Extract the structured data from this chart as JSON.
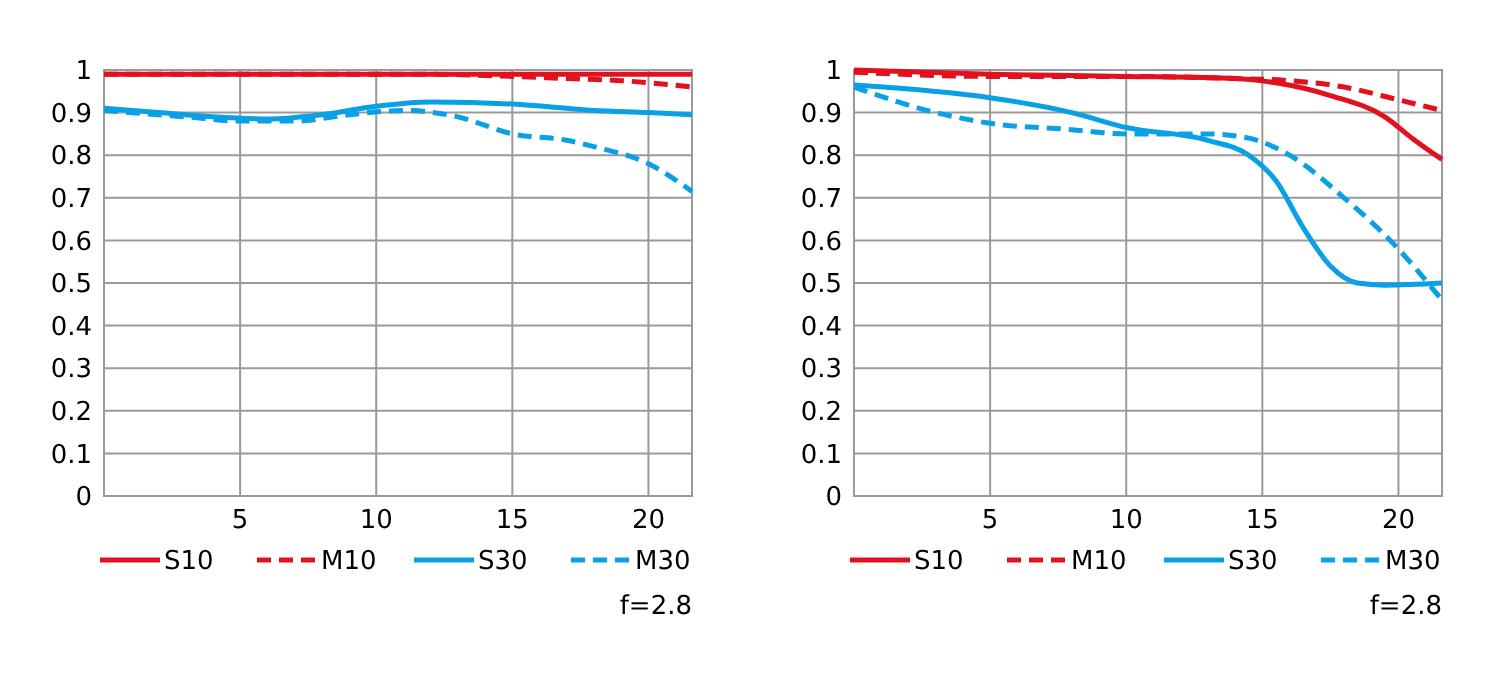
{
  "chart_data": [
    {
      "type": "line",
      "xlim": [
        0,
        21.6
      ],
      "xticks": [
        5,
        10,
        15,
        20
      ],
      "ylim": [
        0,
        1
      ],
      "yticks": [
        0,
        0.1,
        0.2,
        0.3,
        0.4,
        0.5,
        0.6,
        0.7,
        0.8,
        0.9,
        1
      ],
      "grid": true,
      "legend": "bottom",
      "annotations": [
        "f=2.8"
      ],
      "series": [
        {
          "name": "S10",
          "color": "#e3101d",
          "line_style": "solid",
          "x": [
            0,
            5,
            10,
            15,
            20,
            21.6
          ],
          "values": [
            0.99,
            0.99,
            0.99,
            0.99,
            0.99,
            0.99
          ]
        },
        {
          "name": "M10",
          "color": "#e3101d",
          "line_style": "dashed",
          "x": [
            0,
            6,
            12,
            15,
            17,
            19,
            21.6
          ],
          "values": [
            0.99,
            0.99,
            0.99,
            0.985,
            0.98,
            0.975,
            0.96
          ]
        },
        {
          "name": "S30",
          "color": "#0aa0e6",
          "line_style": "solid",
          "x": [
            0,
            2,
            4,
            6,
            8,
            10,
            12,
            15,
            18,
            20,
            21.6
          ],
          "values": [
            0.91,
            0.9,
            0.89,
            0.885,
            0.895,
            0.915,
            0.925,
            0.92,
            0.905,
            0.9,
            0.895
          ]
        },
        {
          "name": "M30",
          "color": "#0aa0e6",
          "line_style": "dashed",
          "x": [
            0,
            3,
            5,
            7,
            9,
            11,
            13,
            15,
            17,
            18,
            20,
            21.6
          ],
          "values": [
            0.905,
            0.89,
            0.88,
            0.88,
            0.895,
            0.905,
            0.89,
            0.85,
            0.835,
            0.82,
            0.78,
            0.715
          ]
        }
      ]
    },
    {
      "type": "line",
      "xlim": [
        0,
        21.6
      ],
      "xticks": [
        5,
        10,
        15,
        20
      ],
      "ylim": [
        0,
        1
      ],
      "yticks": [
        0,
        0.1,
        0.2,
        0.3,
        0.4,
        0.5,
        0.6,
        0.7,
        0.8,
        0.9,
        1
      ],
      "grid": true,
      "legend": "bottom",
      "annotations": [
        "f=2.8"
      ],
      "series": [
        {
          "name": "S10",
          "color": "#e3101d",
          "line_style": "solid",
          "x": [
            0,
            5,
            10,
            14,
            15.5,
            17.5,
            19.5,
            20.5,
            21.6
          ],
          "values": [
            1.0,
            0.99,
            0.985,
            0.98,
            0.97,
            0.94,
            0.89,
            0.84,
            0.79
          ]
        },
        {
          "name": "M10",
          "color": "#e3101d",
          "line_style": "dashed",
          "x": [
            0,
            5,
            10,
            14,
            16,
            18,
            20,
            21.6
          ],
          "values": [
            0.995,
            0.985,
            0.985,
            0.98,
            0.975,
            0.96,
            0.93,
            0.905
          ]
        },
        {
          "name": "S30",
          "color": "#0aa0e6",
          "line_style": "solid",
          "x": [
            0,
            5,
            8,
            10,
            13,
            14.5,
            15.5,
            16.5,
            17.5,
            18.5,
            19.5,
            21.6
          ],
          "values": [
            0.965,
            0.935,
            0.9,
            0.865,
            0.835,
            0.8,
            0.74,
            0.63,
            0.54,
            0.5,
            0.495,
            0.5
          ]
        },
        {
          "name": "M30",
          "color": "#0aa0e6",
          "line_style": "dashed",
          "x": [
            0,
            3,
            5,
            8,
            10,
            13,
            14.5,
            16,
            18,
            19.7,
            21.6
          ],
          "values": [
            0.96,
            0.9,
            0.875,
            0.86,
            0.85,
            0.85,
            0.84,
            0.8,
            0.7,
            0.6,
            0.46
          ]
        }
      ]
    }
  ]
}
